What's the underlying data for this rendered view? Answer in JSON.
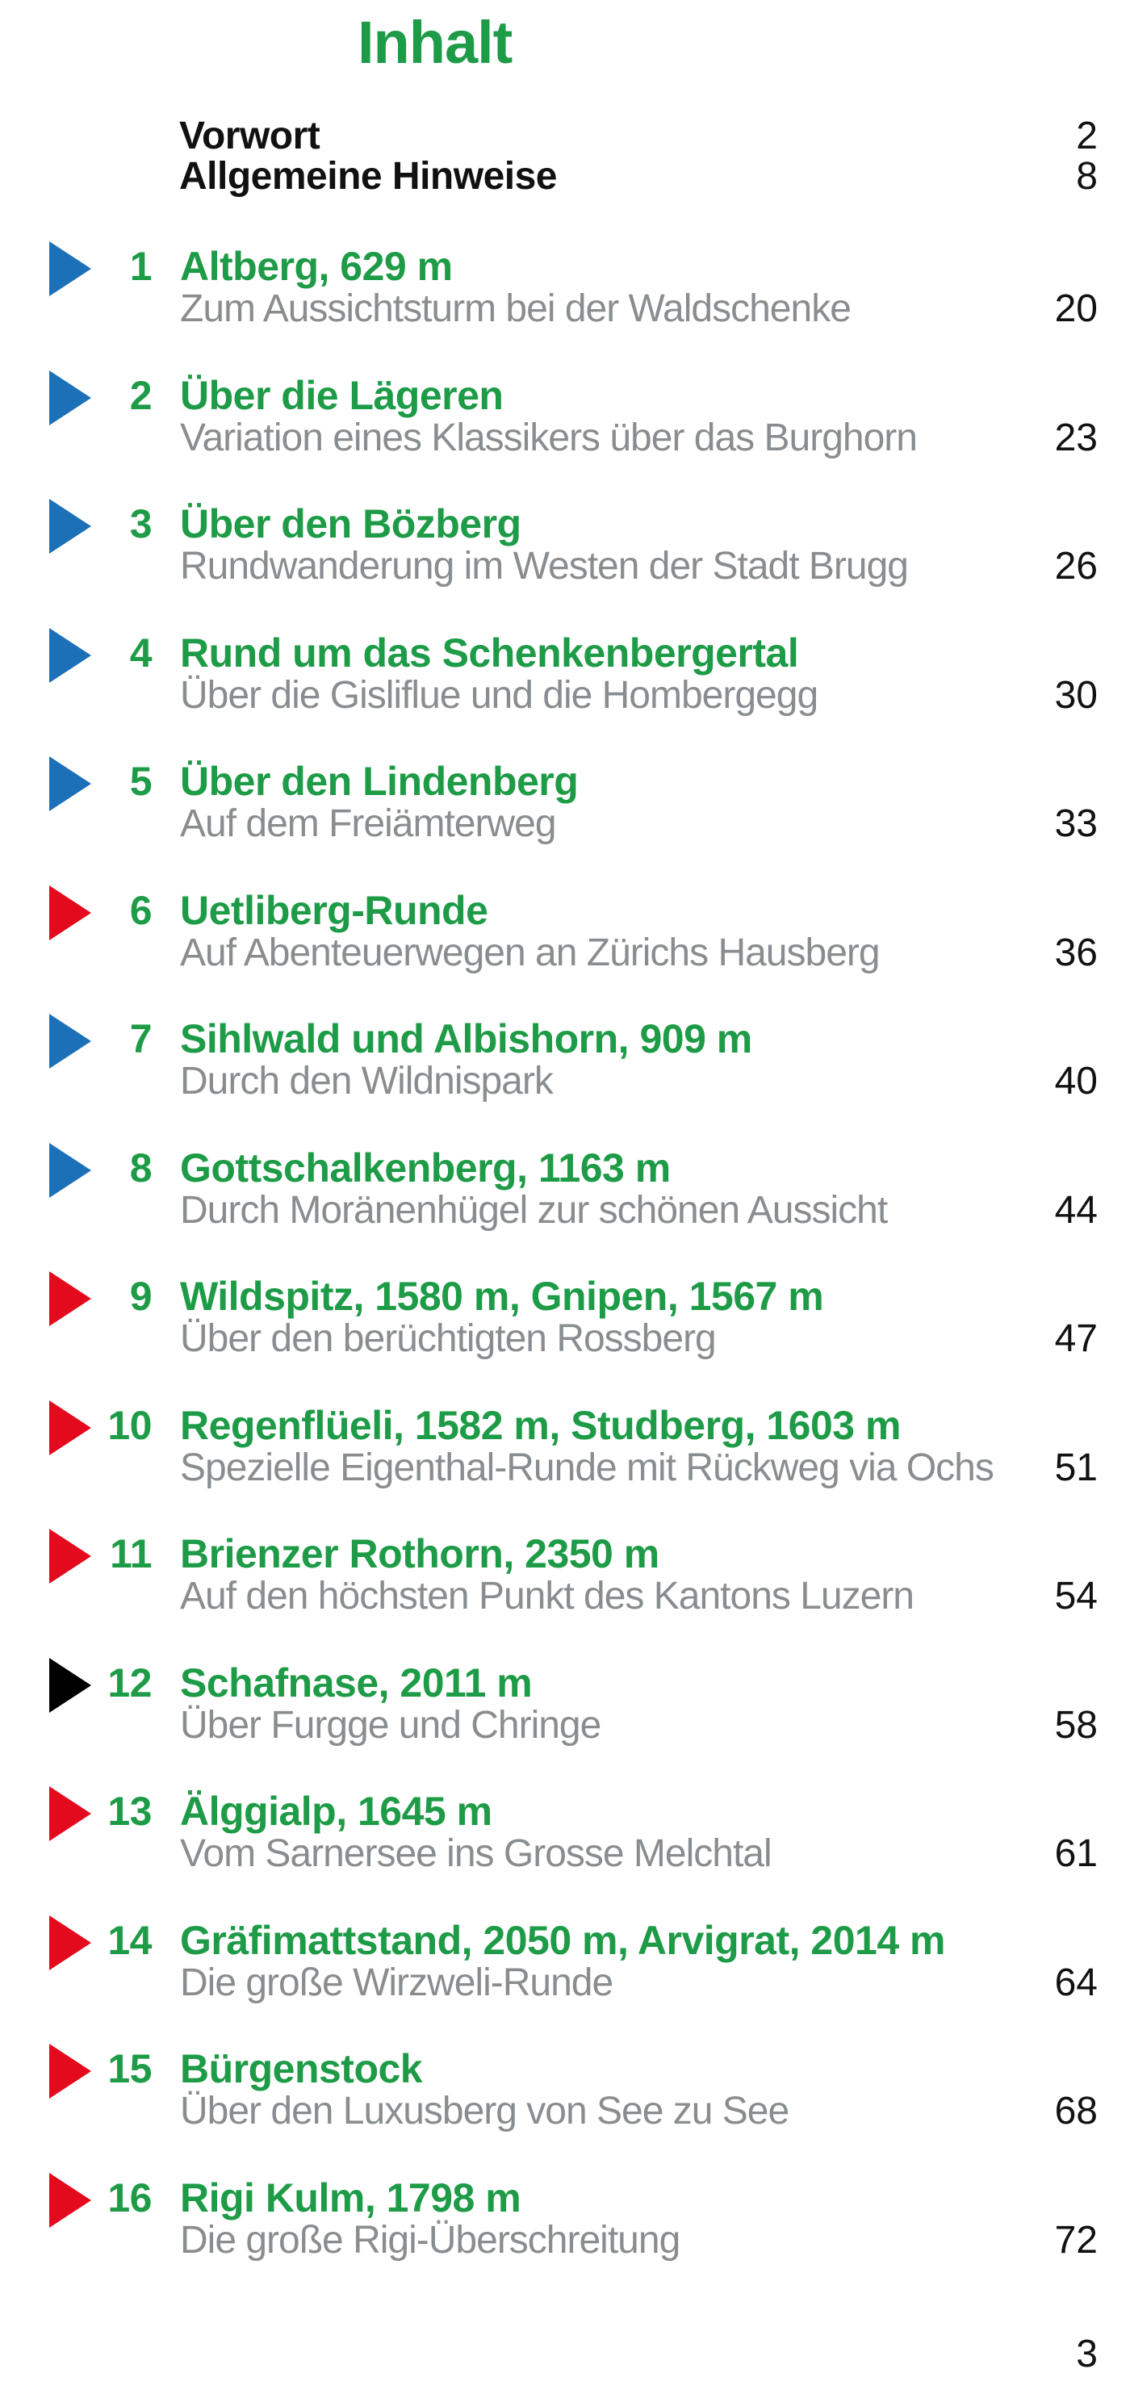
{
  "header": {
    "title": "Inhalt"
  },
  "colors": {
    "green": "#1e9b47",
    "gray": "#8a8d8f",
    "blue": "#1c70b8",
    "red": "#e30a1e",
    "black": "#000000"
  },
  "front_matter": [
    {
      "label": "Vorwort",
      "page": "2"
    },
    {
      "label": "Allgemeine Hinweise",
      "page": "8"
    }
  ],
  "entries": [
    {
      "num": "1",
      "marker": "blue",
      "title": "Altberg, 629 m",
      "subtitle": "Zum Aussichtsturm bei der Waldschenke",
      "page": "20"
    },
    {
      "num": "2",
      "marker": "blue",
      "title": "Über die Lägeren",
      "subtitle": "Variation eines Klassikers über das Burghorn",
      "page": "23"
    },
    {
      "num": "3",
      "marker": "blue",
      "title": "Über den Bözberg",
      "subtitle": "Rundwanderung im Westen der Stadt Brugg",
      "page": "26"
    },
    {
      "num": "4",
      "marker": "blue",
      "title": "Rund um das Schenkenbergertal",
      "subtitle": "Über die Gisliflue und die Hombergegg",
      "page": "30"
    },
    {
      "num": "5",
      "marker": "blue",
      "title": "Über den Lindenberg",
      "subtitle": "Auf dem Freiämterweg",
      "page": "33"
    },
    {
      "num": "6",
      "marker": "red",
      "title": "Uetliberg-Runde",
      "subtitle": "Auf Abenteuerwegen an Zürichs Hausberg",
      "page": "36"
    },
    {
      "num": "7",
      "marker": "blue",
      "title": "Sihlwald und Albishorn, 909 m",
      "subtitle": "Durch den Wildnispark",
      "page": "40"
    },
    {
      "num": "8",
      "marker": "blue",
      "title": "Gottschalkenberg, 1163 m",
      "subtitle": "Durch Moränenhügel zur schönen Aussicht",
      "page": "44"
    },
    {
      "num": "9",
      "marker": "red",
      "title": "Wildspitz, 1580 m, Gnipen, 1567 m",
      "subtitle": "Über den berüchtigten Rossberg",
      "page": "47"
    },
    {
      "num": "10",
      "marker": "red",
      "title": "Regenflüeli, 1582 m, Studberg, 1603 m",
      "subtitle": "Spezielle Eigenthal-Runde mit Rückweg via Ochs",
      "page": "51"
    },
    {
      "num": "11",
      "marker": "red",
      "title": "Brienzer Rothorn, 2350 m",
      "subtitle": "Auf den höchsten Punkt des Kantons Luzern",
      "page": "54"
    },
    {
      "num": "12",
      "marker": "black",
      "title": "Schafnase, 2011 m",
      "subtitle": "Über Furgge und Chringe",
      "page": "58"
    },
    {
      "num": "13",
      "marker": "red",
      "title": "Älggialp, 1645 m",
      "subtitle": "Vom Sarnersee ins Grosse Melchtal",
      "page": "61"
    },
    {
      "num": "14",
      "marker": "red",
      "title": "Gräfimattstand, 2050 m, Arvigrat, 2014 m",
      "subtitle": "Die große Wirzweli-Runde",
      "page": "64"
    },
    {
      "num": "15",
      "marker": "red",
      "title": "Bürgenstock",
      "subtitle": "Über den Luxusberg von See zu See",
      "page": "68"
    },
    {
      "num": "16",
      "marker": "red",
      "title": "Rigi Kulm, 1798 m",
      "subtitle": "Die große Rigi-Überschreitung",
      "page": "72"
    }
  ],
  "footer": {
    "page_number": "3"
  }
}
